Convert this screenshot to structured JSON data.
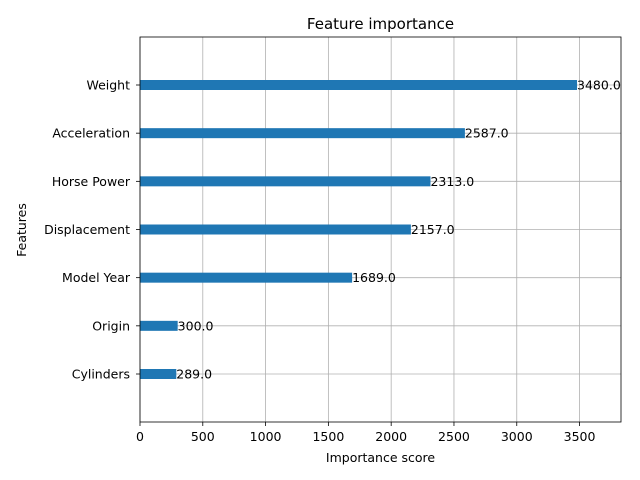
{
  "chart_data": {
    "type": "bar",
    "orientation": "horizontal",
    "title": "Feature importance",
    "xlabel": "Importance score",
    "ylabel": "Features",
    "categories": [
      "Weight",
      "Acceleration",
      "Horse Power",
      "Displacement",
      "Model Year",
      "Origin",
      "Cylinders"
    ],
    "values": [
      3480.0,
      2587.0,
      2313.0,
      2157.0,
      1689.0,
      300.0,
      289.0
    ],
    "value_labels": [
      "3480.0",
      "2587.0",
      "2313.0",
      "2157.0",
      "1689.0",
      "300.0",
      "289.0"
    ],
    "xlim": [
      0,
      3830
    ],
    "xticks": [
      0,
      500,
      1000,
      1500,
      2000,
      2500,
      3000,
      3500
    ],
    "xtick_labels": [
      "0",
      "500",
      "1000",
      "1500",
      "2000",
      "2500",
      "3000",
      "3500"
    ],
    "grid": true,
    "bar_color": "#1f77b4"
  }
}
